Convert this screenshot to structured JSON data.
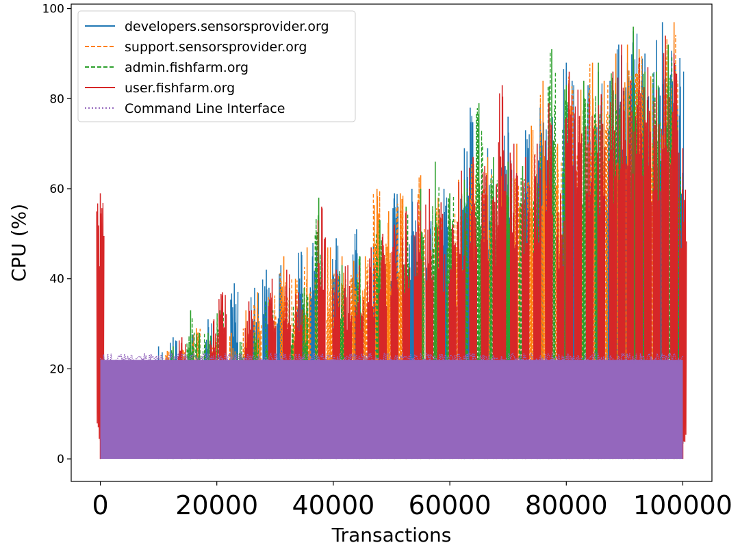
{
  "chart_data": {
    "type": "line",
    "title": "",
    "xlabel": "Transactions",
    "ylabel": "CPU (%)",
    "xlim": [
      -5000,
      105000
    ],
    "ylim": [
      -5,
      101
    ],
    "xticks": [
      0,
      20000,
      40000,
      60000,
      80000,
      100000
    ],
    "xtick_labels": [
      "0",
      "20000",
      "40000",
      "60000",
      "80000",
      "100000"
    ],
    "yticks": [
      0,
      20,
      40,
      60,
      80,
      100
    ],
    "ytick_labels": [
      "0",
      "20",
      "40",
      "60",
      "80",
      "100"
    ],
    "grid": false,
    "legend_position": "top-left",
    "series": [
      {
        "name": "developers.sensorsprovider.org",
        "color": "#1f77b4",
        "style": "solid",
        "spikes": [
          [
            10000,
            25
          ],
          [
            12500,
            27
          ],
          [
            15500,
            28
          ],
          [
            18500,
            31
          ],
          [
            23000,
            39
          ],
          [
            26500,
            38
          ],
          [
            28500,
            42
          ],
          [
            31000,
            43
          ],
          [
            34500,
            46
          ],
          [
            36500,
            48
          ],
          [
            40500,
            49
          ],
          [
            44000,
            51
          ],
          [
            47500,
            52
          ],
          [
            50500,
            59
          ],
          [
            53500,
            60
          ],
          [
            56500,
            55
          ],
          [
            59000,
            60
          ],
          [
            62500,
            69
          ],
          [
            63500,
            78
          ],
          [
            66500,
            69
          ],
          [
            69500,
            65
          ],
          [
            70000,
            76
          ],
          [
            73000,
            73
          ],
          [
            75500,
            78
          ],
          [
            77000,
            77
          ],
          [
            80000,
            88
          ],
          [
            81000,
            84
          ],
          [
            84000,
            83
          ],
          [
            85500,
            86
          ],
          [
            87500,
            84
          ],
          [
            89000,
            92
          ],
          [
            90500,
            88
          ],
          [
            91500,
            95
          ],
          [
            93500,
            90
          ],
          [
            95500,
            93
          ],
          [
            96500,
            97
          ],
          [
            98500,
            93
          ],
          [
            99500,
            89
          ]
        ]
      },
      {
        "name": "support.sensorsprovider.org",
        "color": "#ff7f0e",
        "style": "dashed",
        "spikes": [
          [
            11500,
            24
          ],
          [
            14000,
            25
          ],
          [
            16500,
            29
          ],
          [
            19500,
            27
          ],
          [
            22500,
            28
          ],
          [
            25000,
            33
          ],
          [
            27000,
            37
          ],
          [
            29500,
            37
          ],
          [
            31500,
            45
          ],
          [
            33500,
            40
          ],
          [
            35500,
            47
          ],
          [
            37500,
            43
          ],
          [
            39500,
            47
          ],
          [
            41500,
            45
          ],
          [
            43500,
            44
          ],
          [
            45500,
            45
          ],
          [
            47500,
            60
          ],
          [
            49500,
            55
          ],
          [
            51500,
            59
          ],
          [
            55000,
            63
          ],
          [
            58000,
            58
          ],
          [
            61500,
            62
          ],
          [
            64000,
            67
          ],
          [
            66500,
            67
          ],
          [
            69000,
            67
          ],
          [
            71500,
            70
          ],
          [
            74000,
            74
          ],
          [
            76000,
            84
          ],
          [
            78500,
            70
          ],
          [
            80500,
            85
          ],
          [
            82500,
            82
          ],
          [
            84500,
            88
          ],
          [
            86500,
            84
          ],
          [
            88500,
            90
          ],
          [
            90500,
            92
          ],
          [
            92500,
            91
          ],
          [
            94500,
            85
          ],
          [
            97000,
            94
          ],
          [
            98500,
            97
          ]
        ]
      },
      {
        "name": "admin.fishfarm.org",
        "color": "#2ca02c",
        "style": "dashed",
        "spikes": [
          [
            12500,
            25
          ],
          [
            15500,
            33
          ],
          [
            17000,
            28
          ],
          [
            18500,
            28
          ],
          [
            20500,
            33
          ],
          [
            24000,
            26
          ],
          [
            26500,
            28
          ],
          [
            29000,
            35
          ],
          [
            32500,
            38
          ],
          [
            35000,
            38
          ],
          [
            37500,
            58
          ],
          [
            41500,
            43
          ],
          [
            44500,
            45
          ],
          [
            48000,
            53
          ],
          [
            52500,
            56
          ],
          [
            55000,
            60
          ],
          [
            57500,
            66
          ],
          [
            60000,
            59
          ],
          [
            62500,
            62
          ],
          [
            65000,
            79
          ],
          [
            67500,
            67
          ],
          [
            70000,
            66
          ],
          [
            72500,
            65
          ],
          [
            75000,
            70
          ],
          [
            77500,
            91
          ],
          [
            80000,
            83
          ],
          [
            83000,
            84
          ],
          [
            85500,
            88
          ],
          [
            88000,
            86
          ],
          [
            89500,
            80
          ],
          [
            91500,
            96
          ],
          [
            93500,
            86
          ],
          [
            95500,
            86
          ],
          [
            97500,
            92
          ],
          [
            99000,
            75
          ]
        ]
      },
      {
        "name": "user.fishfarm.org",
        "color": "#d62728",
        "style": "solid",
        "spikes": [
          [
            0,
            59
          ],
          [
            14000,
            27
          ],
          [
            19500,
            31
          ],
          [
            21000,
            37
          ],
          [
            25500,
            35
          ],
          [
            29500,
            40
          ],
          [
            32000,
            42
          ],
          [
            34000,
            37
          ],
          [
            38000,
            56
          ],
          [
            40500,
            42
          ],
          [
            42500,
            43
          ],
          [
            44500,
            43
          ],
          [
            46500,
            47
          ],
          [
            48500,
            50
          ],
          [
            50500,
            52
          ],
          [
            52500,
            55
          ],
          [
            54500,
            57
          ],
          [
            56500,
            60
          ],
          [
            58500,
            57
          ],
          [
            60500,
            52
          ],
          [
            62000,
            64
          ],
          [
            64000,
            67
          ],
          [
            66000,
            65
          ],
          [
            68000,
            61
          ],
          [
            69000,
            83
          ],
          [
            71000,
            70
          ],
          [
            73000,
            67
          ],
          [
            75000,
            70
          ],
          [
            77000,
            79
          ],
          [
            79000,
            59
          ],
          [
            80500,
            86
          ],
          [
            82000,
            82
          ],
          [
            84000,
            80
          ],
          [
            86000,
            81
          ],
          [
            88000,
            86
          ],
          [
            89500,
            92
          ],
          [
            91000,
            84
          ],
          [
            92500,
            89
          ],
          [
            94000,
            87
          ],
          [
            95500,
            82
          ],
          [
            97000,
            94
          ],
          [
            98500,
            90
          ],
          [
            100000,
            69
          ]
        ]
      },
      {
        "name": "Command Line Interface",
        "color": "#9467bd",
        "style": "dotted",
        "band": [
          0,
          23.5
        ],
        "x_range": [
          0,
          100000
        ]
      }
    ]
  }
}
